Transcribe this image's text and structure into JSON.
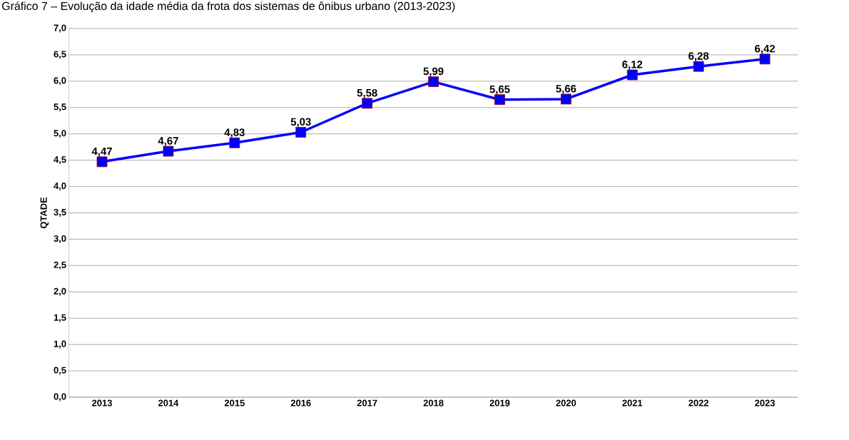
{
  "chart_data": {
    "type": "line",
    "title": "Gráfico 7 – Evolução da idade média da frota dos sistemas de ônibus urbano (2013-2023)",
    "ylabel": "QTADE",
    "categories": [
      "2013",
      "2014",
      "2015",
      "2016",
      "2017",
      "2018",
      "2019",
      "2020",
      "2021",
      "2022",
      "2023"
    ],
    "series": [
      {
        "color": "#0000ff",
        "values": [
          4.47,
          4.67,
          4.83,
          5.03,
          5.58,
          5.99,
          5.65,
          5.66,
          6.12,
          6.28,
          6.42
        ],
        "value_labels": [
          "4,47",
          "4,67",
          "4,83",
          "5,03",
          "5,58",
          "5,99",
          "5,65",
          "5,66",
          "6,12",
          "6,28",
          "6,42"
        ]
      }
    ],
    "ylim": [
      0,
      7
    ],
    "yticks": [
      {
        "value": 0,
        "label": "0,0"
      },
      {
        "value": 0.5,
        "label": "0,5"
      },
      {
        "value": 1,
        "label": "1,0"
      },
      {
        "value": 1.5,
        "label": "1,5"
      },
      {
        "value": 2,
        "label": "2,0"
      },
      {
        "value": 2.5,
        "label": "2,5"
      },
      {
        "value": 3,
        "label": "3,0"
      },
      {
        "value": 3.5,
        "label": "3,5"
      },
      {
        "value": 4,
        "label": "4,0"
      },
      {
        "value": 4.5,
        "label": "4,5"
      },
      {
        "value": 5,
        "label": "5,0"
      },
      {
        "value": 5.5,
        "label": "5,5"
      },
      {
        "value": 6,
        "label": "6,0"
      },
      {
        "value": 6.5,
        "label": "6,5"
      },
      {
        "value": 7,
        "label": "7,0"
      }
    ],
    "grid": "y",
    "legend": false,
    "marker": "square",
    "line_style": "solid"
  }
}
